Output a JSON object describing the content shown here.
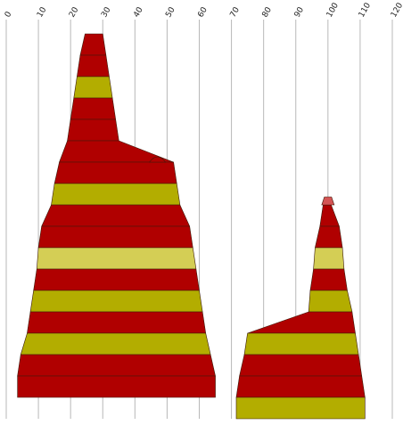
{
  "chart_data": {
    "type": "area",
    "title": "",
    "xlabel": "",
    "ylabel": "",
    "xlim": [
      0,
      120
    ],
    "x_ticks": [
      0,
      10,
      20,
      30,
      40,
      50,
      60,
      70,
      80,
      90,
      100,
      110,
      120
    ],
    "grid": "vertical",
    "legend": "none",
    "colors": {
      "red": "#b00000",
      "olive": "#b3ad00",
      "pale_yellow": "#d4ce55",
      "light_red": "#d45555",
      "outline": "#3a1a0a",
      "grid": "#b8b8b8"
    },
    "layers_top_to_bottom": [
      {
        "color": "red",
        "widths": [
          [
            24.5,
            30.0
          ],
          null
        ]
      },
      {
        "color": "red",
        "widths": [
          [
            23.0,
            31.0
          ],
          null
        ]
      },
      {
        "color": "olive",
        "widths": [
          [
            22.0,
            32.0
          ],
          null
        ]
      },
      {
        "color": "red",
        "widths": [
          [
            21.0,
            33.0
          ],
          null
        ]
      },
      {
        "color": "red",
        "widths": [
          [
            20.0,
            34.0
          ],
          null
        ]
      },
      {
        "color": "red",
        "widths": [
          [
            19.0,
            35.0
          ],
          null
        ]
      },
      {
        "color": "red",
        "widths": [
          [
            16.5,
            52.0
          ],
          null
        ]
      },
      {
        "color": "olive",
        "widths": [
          [
            15.0,
            53.0
          ],
          null
        ]
      },
      {
        "color": "red",
        "widths": [
          [
            14.0,
            54.0
          ],
          [
            98.5,
            101.0
          ]
        ]
      },
      {
        "color": "red",
        "widths": [
          [
            11.0,
            57.0
          ],
          [
            97.5,
            103.5
          ]
        ]
      },
      {
        "color": "pale_yellow",
        "widths": [
          [
            10.0,
            58.0
          ],
          [
            96.0,
            104.5
          ]
        ]
      },
      {
        "color": "red",
        "widths": [
          [
            9.5,
            59.0
          ],
          [
            95.5,
            105.0
          ]
        ]
      },
      {
        "color": "olive",
        "widths": [
          [
            8.5,
            60.0
          ],
          [
            94.5,
            106.0
          ]
        ]
      },
      {
        "color": "red",
        "widths": [
          [
            7.5,
            61.0
          ],
          [
            94.0,
            107.5
          ]
        ]
      },
      {
        "color": "olive",
        "widths": [
          [
            6.5,
            62.0
          ],
          [
            75.0,
            108.5
          ]
        ]
      },
      {
        "color": "red",
        "widths": [
          [
            4.5,
            63.5
          ],
          [
            74.0,
            109.5
          ]
        ]
      },
      {
        "color": "red",
        "widths": [
          [
            3.5,
            65.0
          ],
          [
            72.5,
            110.5
          ]
        ]
      },
      {
        "color": "olive",
        "widths": [
          null,
          [
            71.5,
            111.5
          ]
        ]
      }
    ]
  }
}
